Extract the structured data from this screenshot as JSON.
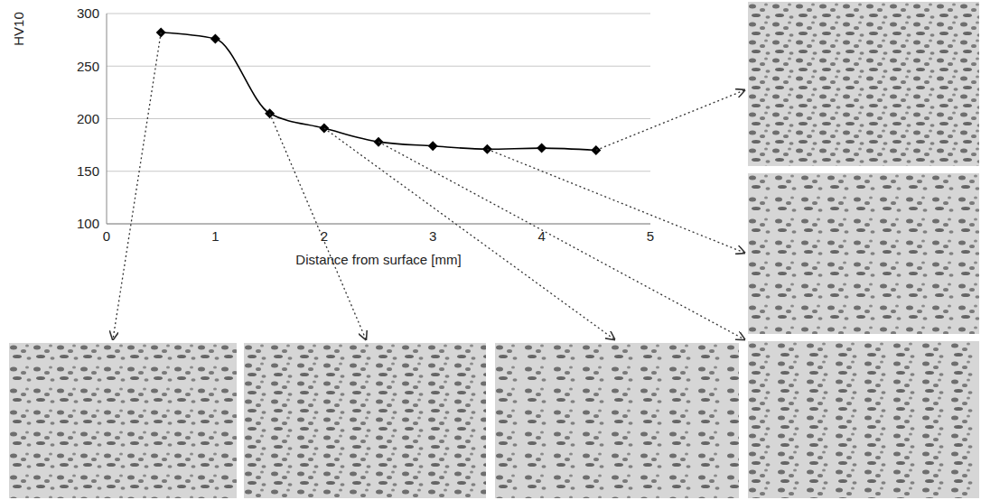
{
  "chart_data": {
    "type": "line",
    "x": [
      0.5,
      1,
      1.5,
      2,
      2.5,
      3,
      3.5,
      4,
      4.5
    ],
    "values": [
      282,
      276,
      205,
      191,
      178,
      174,
      171,
      172,
      170
    ],
    "color": "#000000",
    "marker": "diamond",
    "line_style": "solid",
    "xlabel": "Distance from surface [mm]",
    "ylabel": "HV10",
    "xlim": [
      0,
      5
    ],
    "xticks": [
      0,
      1,
      2,
      3,
      4,
      5
    ],
    "ylim": [
      100,
      300
    ],
    "yticks": [
      100,
      150,
      200,
      250,
      300
    ],
    "grid": true
  }
}
